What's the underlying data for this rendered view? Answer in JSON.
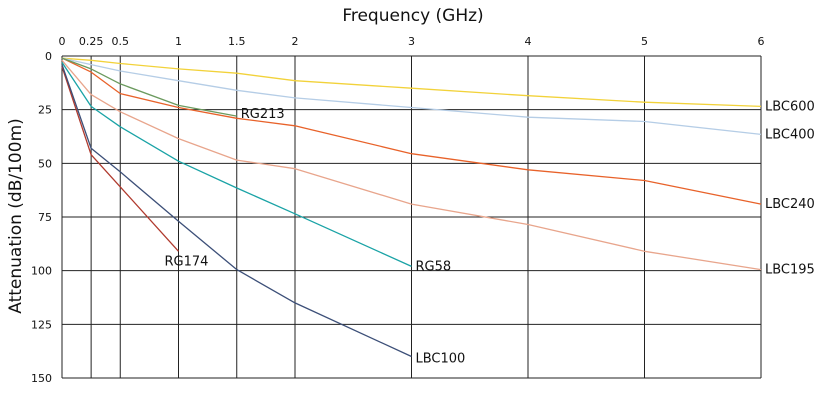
{
  "chart_data": {
    "type": "line",
    "title": "",
    "xlabel": "Frequency (GHz)",
    "ylabel": "Attenuation (dB/100m)",
    "x_ticks": [
      0,
      0.25,
      0.5,
      1,
      1.5,
      2,
      3,
      4,
      5,
      6
    ],
    "x_tick_labels": [
      "0",
      "0.25",
      "0.5",
      "1",
      "1.5",
      "2",
      "3",
      "4",
      "5",
      "6"
    ],
    "y_ticks": [
      0,
      25,
      50,
      75,
      100,
      125,
      150
    ],
    "y_tick_labels": [
      "0",
      "25",
      "50",
      "75",
      "100",
      "125",
      "150"
    ],
    "xlim": [
      0,
      6
    ],
    "ylim": [
      0,
      150
    ],
    "y_inverted": true,
    "x_axis_position": "top",
    "grid": true,
    "legend": "inline labels at line ends",
    "series": [
      {
        "name": "LBC600",
        "color": "#f2d23a",
        "x": [
          0,
          0.25,
          0.5,
          1,
          1.5,
          2,
          3,
          4,
          5,
          6
        ],
        "y": [
          1,
          2,
          3.5,
          6,
          8,
          11.5,
          15,
          18.5,
          21.5,
          23.5
        ]
      },
      {
        "name": "LBC400",
        "color": "#b5cde6",
        "x": [
          0,
          0.25,
          0.5,
          1,
          1.5,
          2,
          3,
          4,
          5,
          6
        ],
        "y": [
          1,
          4,
          7,
          11.5,
          16,
          19.5,
          24,
          28.5,
          30.5,
          36.5
        ]
      },
      {
        "name": "LBC240",
        "color": "#e8622a",
        "x": [
          0,
          0.25,
          0.5,
          1,
          1.5,
          2,
          3,
          4,
          5,
          6
        ],
        "y": [
          1,
          7.5,
          17.5,
          24,
          29,
          32.5,
          45.5,
          53,
          58,
          69
        ]
      },
      {
        "name": "LBC195",
        "color": "#e8a58c",
        "x": [
          0,
          0.25,
          0.5,
          1,
          1.5,
          2,
          3,
          4,
          5,
          6
        ],
        "y": [
          2,
          18,
          26,
          38.5,
          48.5,
          52.5,
          69,
          78.5,
          91,
          99.5
        ]
      },
      {
        "name": "RG213",
        "color": "#6b9a5e",
        "x": [
          0,
          0.25,
          0.5,
          1,
          1.5
        ],
        "y": [
          1,
          6,
          13,
          23,
          28
        ]
      },
      {
        "name": "RG58",
        "color": "#1aa3a6",
        "x": [
          0,
          0.25,
          0.5,
          1,
          1.5,
          2,
          3
        ],
        "y": [
          3,
          23.5,
          33,
          49,
          61.5,
          73.5,
          98
        ]
      },
      {
        "name": "RG174",
        "color": "#b03a2e",
        "x": [
          0,
          0.25,
          0.5,
          1
        ],
        "y": [
          5,
          46,
          61,
          91
        ]
      },
      {
        "name": "LBC100",
        "color": "#3c4f78",
        "x": [
          0,
          0.25,
          0.5,
          1,
          1.5,
          2,
          3
        ],
        "y": [
          4,
          43,
          54,
          77,
          99.5,
          115,
          140
        ]
      }
    ]
  }
}
